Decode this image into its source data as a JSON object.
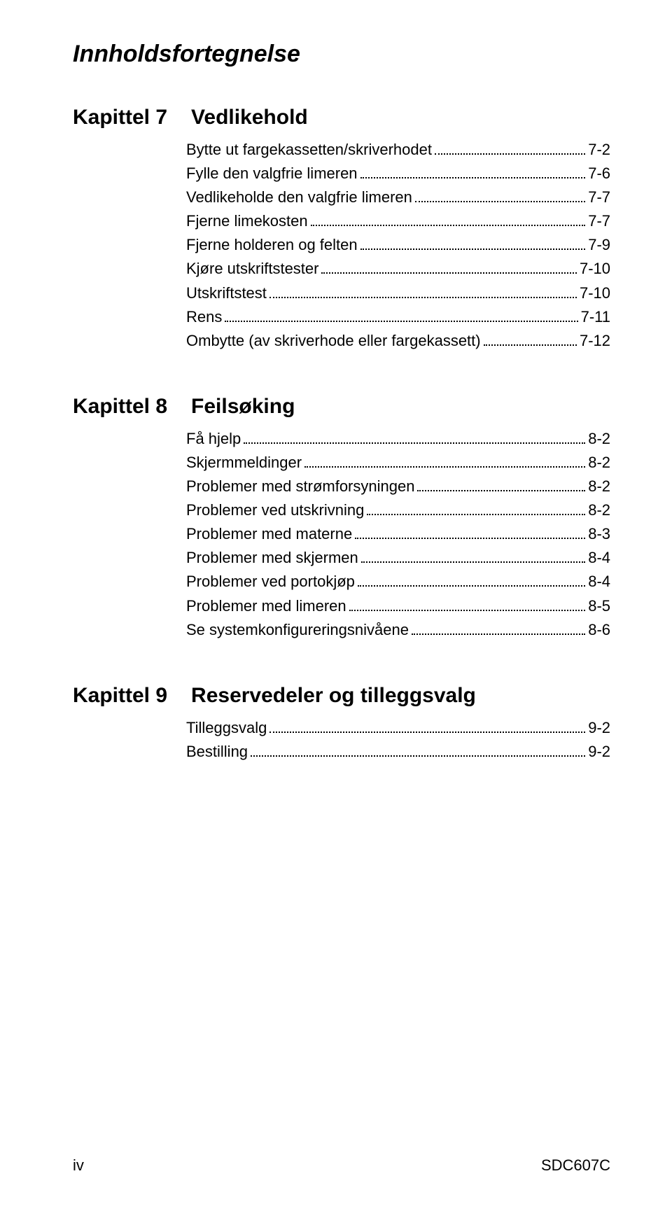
{
  "title": "Innholdsfortegnelse",
  "chapters": [
    {
      "label": "Kapittel 7",
      "name": "Vedlikehold",
      "entries": [
        {
          "label": "Bytte ut fargekassetten/skriverhodet",
          "page": "7-2"
        },
        {
          "label": "Fylle den valgfrie limeren",
          "page": "7-6"
        },
        {
          "label": "Vedlikeholde den valgfrie limeren",
          "page": "7-7"
        },
        {
          "label": "Fjerne limekosten",
          "page": " 7-7"
        },
        {
          "label": "Fjerne holderen og felten",
          "page": " 7-9"
        },
        {
          "label": "Kjøre utskriftstester",
          "page": "7-10"
        },
        {
          "label": "Utskriftstest",
          "page": " 7-10"
        },
        {
          "label": "Rens",
          "page": "7-11"
        },
        {
          "label": "Ombytte (av skriverhode eller fargekassett)",
          "page": " 7-12"
        }
      ]
    },
    {
      "label": "Kapittel 8",
      "name": "Feilsøking",
      "entries": [
        {
          "label": "Få hjelp",
          "page": "8-2"
        },
        {
          "label": "Skjermmeldinger",
          "page": "8-2"
        },
        {
          "label": "Problemer med strømforsyningen",
          "page": "8-2"
        },
        {
          "label": "Problemer ved utskrivning",
          "page": "8-2"
        },
        {
          "label": "Problemer med materne",
          "page": "8-3"
        },
        {
          "label": "Problemer med skjermen",
          "page": "8-4"
        },
        {
          "label": "Problemer ved portokjøp",
          "page": "8-4"
        },
        {
          "label": "Problemer med limeren",
          "page": "8-5"
        },
        {
          "label": "Se systemkonfigureringsnivåene",
          "page": "8-6"
        }
      ]
    },
    {
      "label": "Kapittel 9",
      "name": "Reservedeler og tilleggsvalg",
      "entries": [
        {
          "label": "Tilleggsvalg",
          "page": "9-2"
        },
        {
          "label": "Bestilling",
          "page": "9-2"
        }
      ]
    }
  ],
  "footer": {
    "left": "iv",
    "right": "SDC607C"
  }
}
